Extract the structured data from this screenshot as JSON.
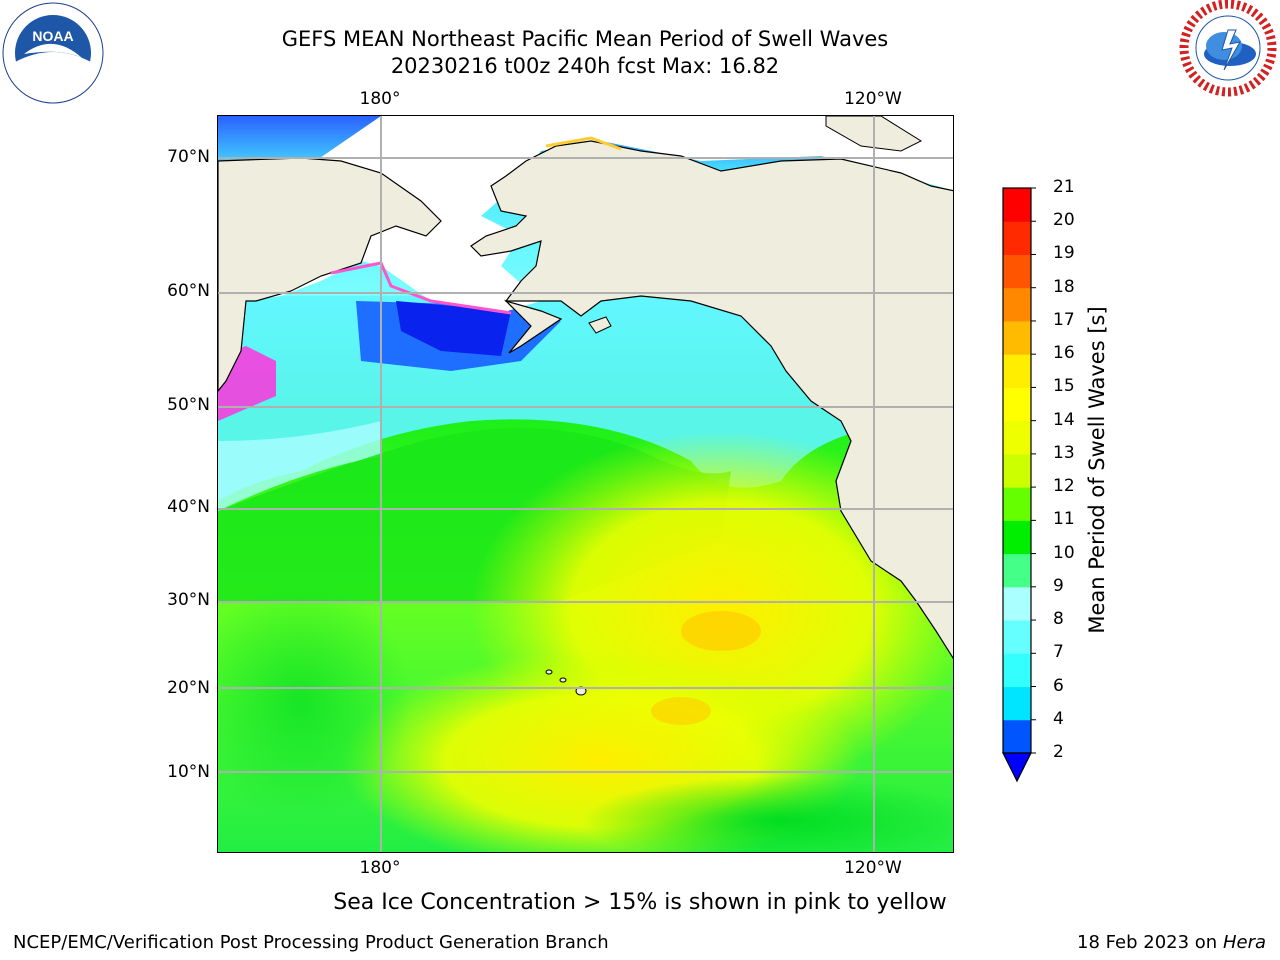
{
  "header": {
    "title_line1": "GEFS MEAN Northeast Pacific Mean Period of Swell Waves",
    "title_line2": "20230216 t00z 240h fcst   Max: 16.82"
  },
  "logos": {
    "left": {
      "name": "noaa-logo",
      "text": "NOAA"
    },
    "right": {
      "name": "nws-logo",
      "text": "NATIONAL WEATHER SERVICE"
    }
  },
  "map": {
    "lon_labels": [
      "180°",
      "120°W"
    ],
    "lat_labels": [
      "70°N",
      "60°N",
      "50°N",
      "40°N",
      "30°N",
      "20°N",
      "10°N"
    ],
    "land_color": "#efedde",
    "coast_color": "#000000",
    "grid_color": "#b0b0b0"
  },
  "colorbar": {
    "label": "Mean Period of Swell Waves [s]",
    "ticks": [
      "2",
      "4",
      "6",
      "7",
      "8",
      "9",
      "10",
      "11",
      "12",
      "13",
      "14",
      "15",
      "16",
      "17",
      "18",
      "19",
      "20",
      "21"
    ],
    "colors": [
      "#0055ff",
      "#00e5ff",
      "#33ffff",
      "#66ffff",
      "#aaffff",
      "#44ff88",
      "#00ee00",
      "#66ff00",
      "#ccff00",
      "#eeff00",
      "#ffff00",
      "#ffee00",
      "#ffbb00",
      "#ff8800",
      "#ff5500",
      "#ff2a00",
      "#ff0000"
    ],
    "under_color": "#0000ff"
  },
  "footer": {
    "note": "Sea Ice Concentration > 15% is shown in pink to yellow",
    "branch": "NCEP/EMC/Verification Post Processing Product Generation Branch",
    "date": "18 Feb 2023 on",
    "machine": "Hera"
  }
}
